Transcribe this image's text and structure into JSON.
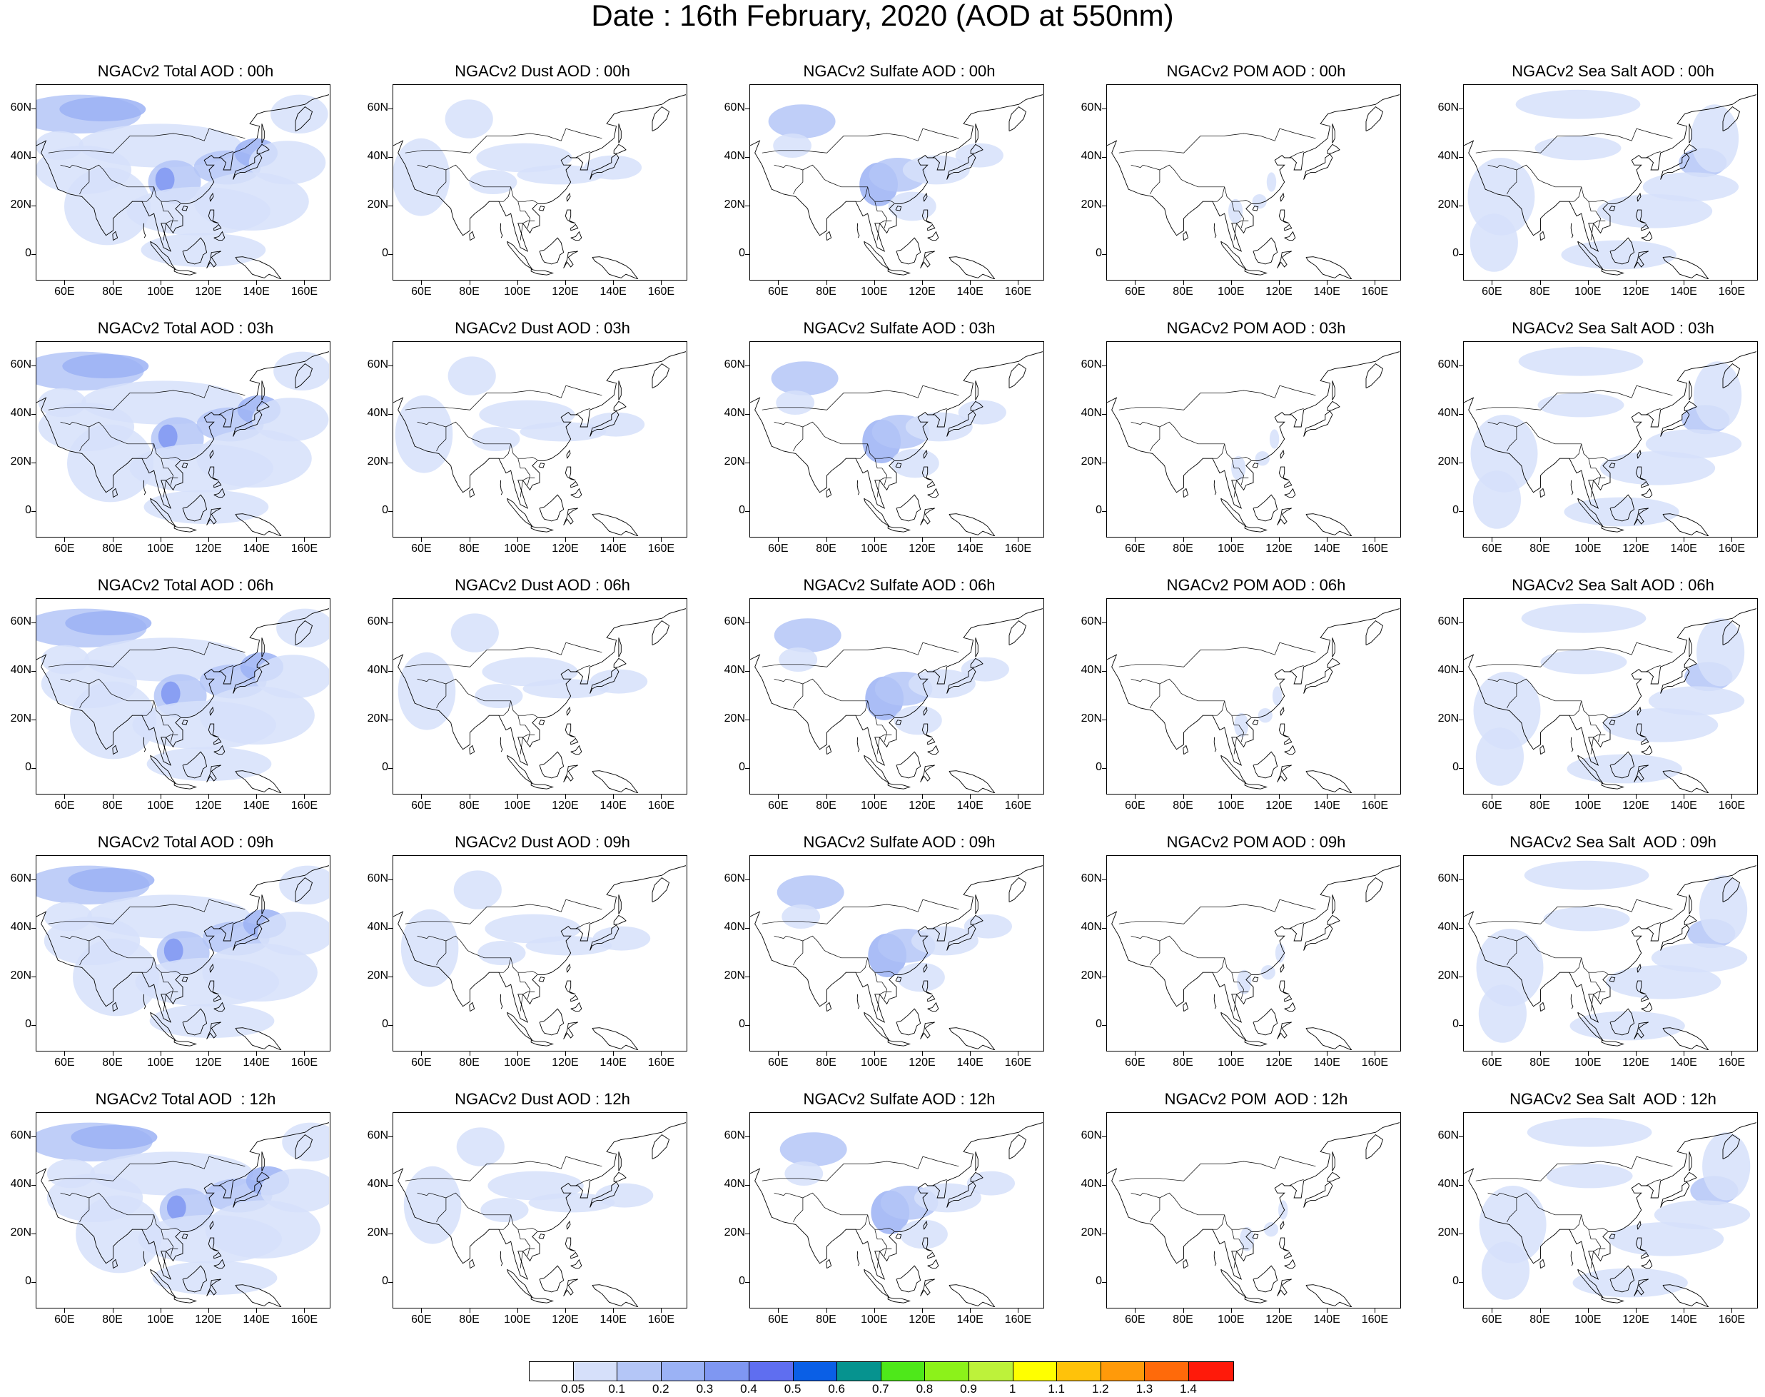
{
  "title": "Date : 16th February, 2020 (AOD at 550nm)",
  "x_ticks": [
    "60E",
    "80E",
    "100E",
    "120E",
    "140E",
    "160E"
  ],
  "y_ticks": [
    "60N",
    "40N",
    "20N",
    "0"
  ],
  "panels": [
    [
      "NGACv2 Total AOD : 00h",
      "NGACv2 Dust AOD : 00h",
      "NGACv2 Sulfate AOD : 00h",
      "NGACv2 POM AOD : 00h",
      "NGACv2 Sea Salt AOD : 00h"
    ],
    [
      "NGACv2 Total AOD : 03h",
      "NGACv2 Dust AOD : 03h",
      "NGACv2 Sulfate AOD : 03h",
      "NGACv2 POM AOD : 03h",
      "NGACv2 Sea Salt AOD : 03h"
    ],
    [
      "NGACv2 Total AOD : 06h",
      "NGACv2 Dust AOD : 06h",
      "NGACv2 Sulfate AOD : 06h",
      "NGACv2 POM AOD : 06h",
      "NGACv2 Sea Salt AOD : 06h"
    ],
    [
      "NGACv2 Total AOD : 09h",
      "NGACv2 Dust AOD : 09h",
      "NGACv2 Sulfate AOD : 09h",
      "NGACv2 POM AOD : 09h",
      "NGACv2 Sea Salt  AOD : 09h"
    ],
    [
      "NGACv2 Total AOD  : 12h",
      "NGACv2 Dust AOD : 12h",
      "NGACv2 Sulfate AOD : 12h",
      "NGACv2 POM  AOD : 12h",
      "NGACv2 Sea Salt  AOD : 12h"
    ]
  ],
  "colorbar": {
    "labels": [
      "0.05",
      "0.1",
      "0.2",
      "0.3",
      "0.4",
      "0.5",
      "0.6",
      "0.7",
      "0.8",
      "0.9",
      "1",
      "1.1",
      "1.2",
      "1.3",
      "1.4"
    ],
    "colors": [
      "#ffffff",
      "#d6e0fa",
      "#b4c6f7",
      "#9bb2f5",
      "#7f97f2",
      "#5f6ef0",
      "#0a5fe6",
      "#06938f",
      "#4ee81a",
      "#8cf21a",
      "#bdf23a",
      "#ffff00",
      "#ffc20a",
      "#ff9a0a",
      "#ff6a0a",
      "#ff1a0a"
    ]
  }
}
